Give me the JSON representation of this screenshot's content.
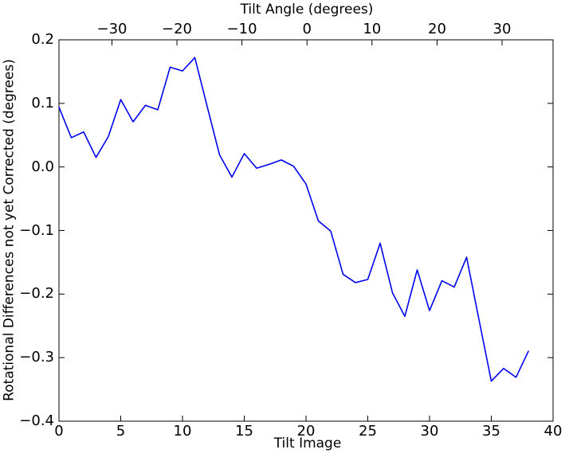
{
  "chart_data": {
    "type": "line",
    "title": "",
    "top_xlabel": "Tilt Angle (degrees)",
    "xlabel": "Tilt Image",
    "ylabel": "Rotational Differences not yet Corrected (degrees)",
    "xlim": [
      0,
      40
    ],
    "ylim": [
      -0.4,
      0.2
    ],
    "grid": false,
    "legend": null,
    "line_color": "#0000f0",
    "axis_color": "#000000",
    "background_color": "#ffffff",
    "x_ticks": {
      "values": [
        0,
        5,
        10,
        15,
        20,
        25,
        30,
        35,
        40
      ],
      "labels": [
        "0",
        "5",
        "10",
        "15",
        "20",
        "25",
        "30",
        "35",
        "40"
      ]
    },
    "y_ticks": {
      "values": [
        0.2,
        0.1,
        0.0,
        -0.1,
        -0.2,
        -0.3,
        -0.4
      ],
      "labels": [
        "0.2",
        "0.1",
        "0.0",
        "−0.1",
        "−0.2",
        "−0.3",
        "−0.4"
      ]
    },
    "top_ticks": {
      "angle_values": [
        -30,
        -20,
        -10,
        0,
        10,
        20,
        30
      ],
      "labels": [
        "−30",
        "−20",
        "−10",
        "0",
        "10",
        "20",
        "30"
      ],
      "positions_in_x_units": [
        4.29,
        9.55,
        14.81,
        20.08,
        25.34,
        30.61,
        35.87
      ]
    },
    "series": [
      {
        "name": "rotational_difference_not_yet_corrected",
        "x": [
          0,
          1,
          2,
          3,
          4,
          5,
          6,
          7,
          8,
          9,
          10,
          11,
          12,
          13,
          14,
          15,
          16,
          17,
          18,
          19,
          20,
          21,
          22,
          23,
          24,
          25,
          26,
          27,
          28,
          29,
          30,
          31,
          32,
          33,
          34,
          35,
          36,
          37,
          38
        ],
        "y": [
          0.094,
          0.046,
          0.055,
          0.015,
          0.048,
          0.106,
          0.071,
          0.097,
          0.09,
          0.157,
          0.151,
          0.172,
          0.095,
          0.019,
          -0.016,
          0.021,
          -0.002,
          0.004,
          0.011,
          0.001,
          -0.027,
          -0.085,
          -0.101,
          -0.169,
          -0.182,
          -0.177,
          -0.12,
          -0.198,
          -0.235,
          -0.162,
          -0.226,
          -0.179,
          -0.189,
          -0.142,
          -0.24,
          -0.337,
          -0.317,
          -0.331,
          -0.29
        ]
      }
    ]
  }
}
